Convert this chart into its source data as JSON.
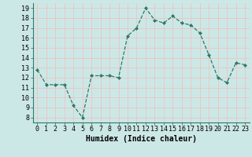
{
  "x": [
    0,
    1,
    2,
    3,
    4,
    5,
    6,
    7,
    8,
    9,
    10,
    11,
    12,
    13,
    14,
    15,
    16,
    17,
    18,
    19,
    20,
    21,
    22,
    23
  ],
  "y": [
    12.8,
    11.3,
    11.3,
    11.3,
    9.2,
    8.0,
    12.2,
    12.2,
    12.2,
    12.0,
    16.2,
    17.0,
    19.0,
    17.8,
    17.5,
    18.2,
    17.5,
    17.3,
    16.5,
    14.3,
    12.0,
    11.5,
    13.5,
    13.3
  ],
  "xlabel": "Humidex (Indice chaleur)",
  "ylim": [
    7.5,
    19.5
  ],
  "yticks": [
    8,
    9,
    10,
    11,
    12,
    13,
    14,
    15,
    16,
    17,
    18,
    19
  ],
  "xticks": [
    0,
    1,
    2,
    3,
    4,
    5,
    6,
    7,
    8,
    9,
    10,
    11,
    12,
    13,
    14,
    15,
    16,
    17,
    18,
    19,
    20,
    21,
    22,
    23
  ],
  "line_color": "#2d7a6a",
  "marker_color": "#2d7a6a",
  "bg_color": "#cce8e6",
  "grid_color": "#e8c8c8",
  "xlabel_fontsize": 7.0,
  "tick_fontsize": 6.0
}
